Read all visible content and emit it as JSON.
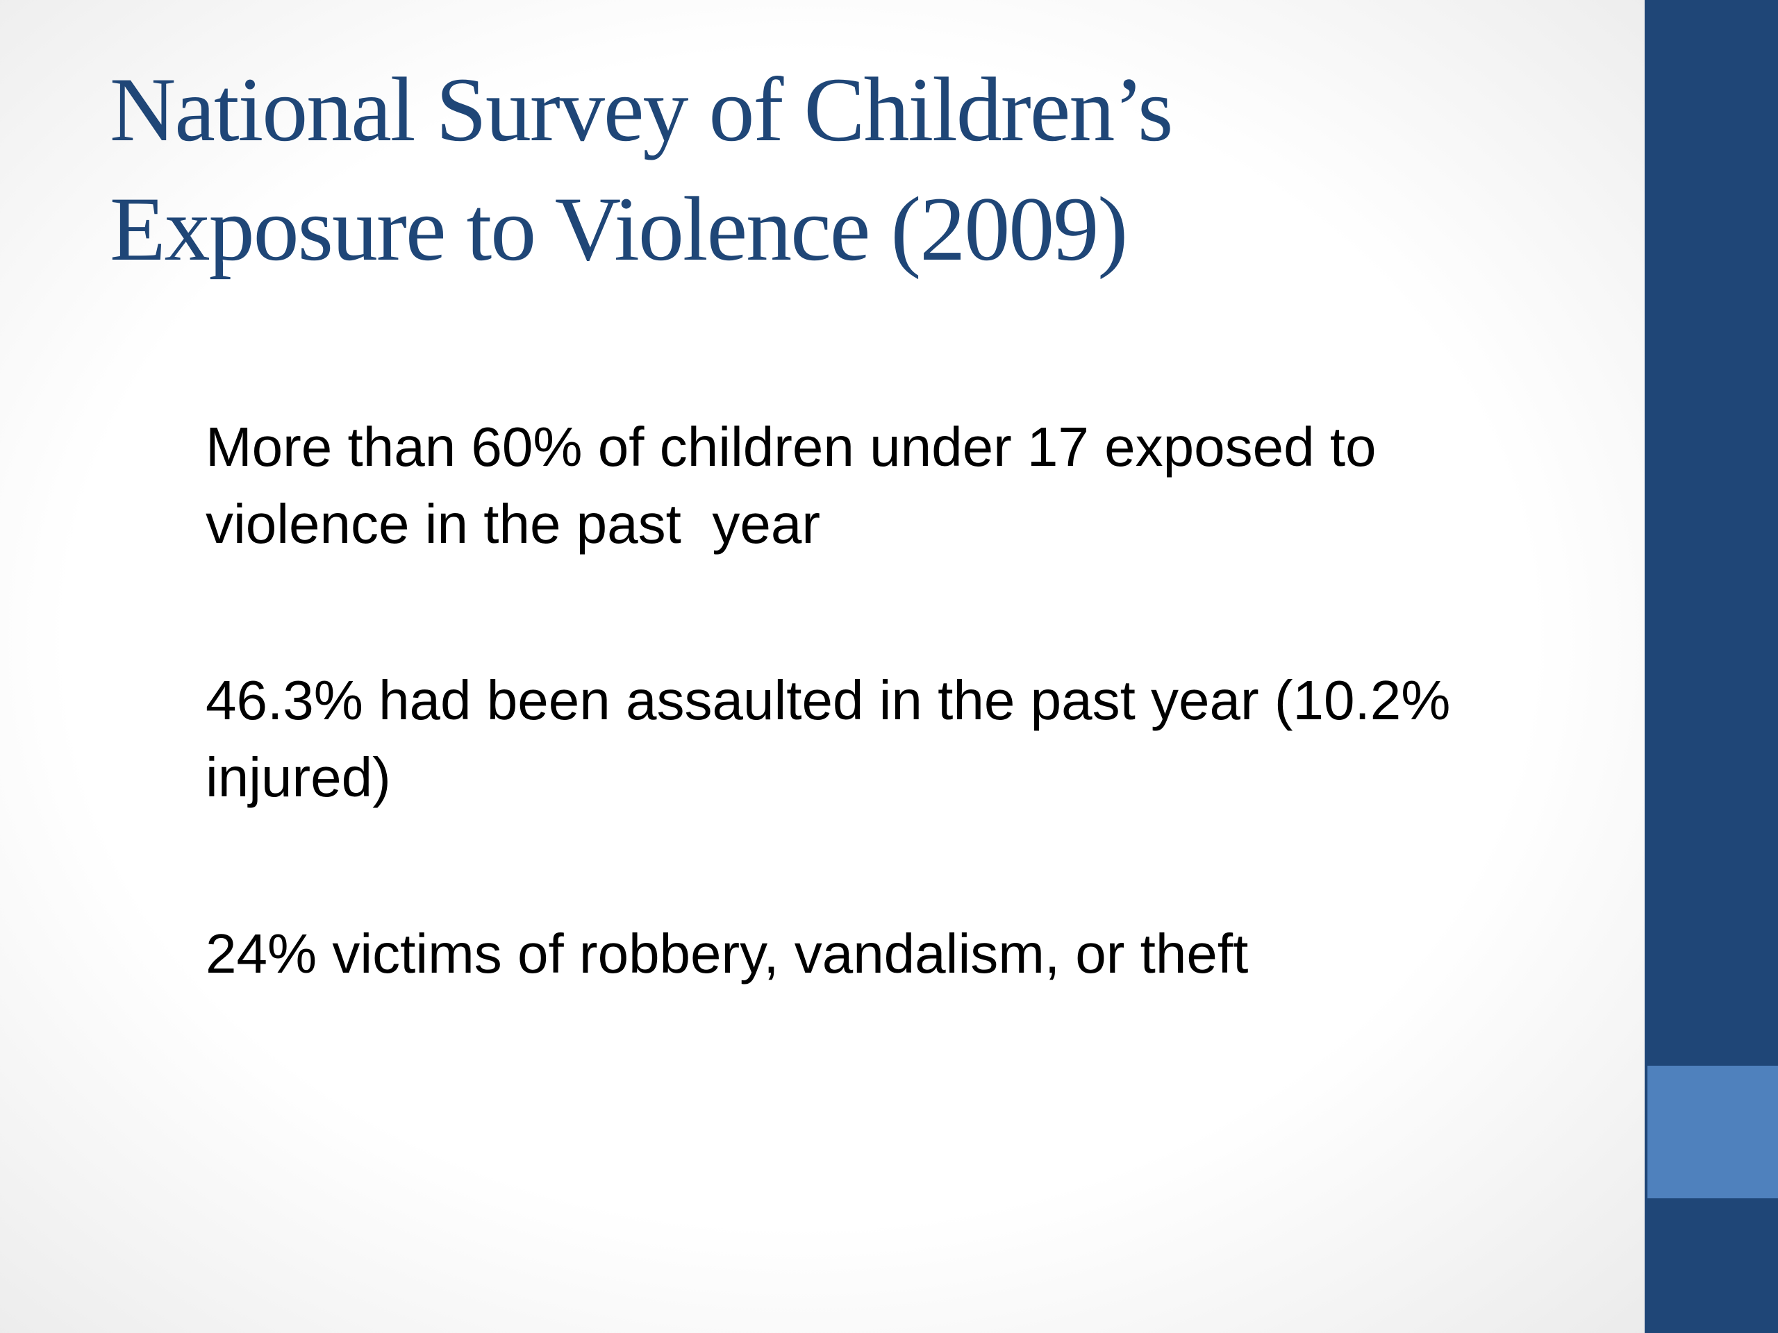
{
  "title": {
    "lines": [
      "National Survey of Children’s",
      "Exposure to Violence (2009)"
    ]
  },
  "bullets": [
    {
      "lines": [
        "More than 60% of children under 17 exposed to",
        "violence in the past  year"
      ]
    },
    {
      "lines": [
        "46.3% had been assaulted in the past year (10.2%",
        "injured)"
      ]
    },
    {
      "lines": [
        "24% victims of robbery, vandalism, or theft"
      ]
    }
  ]
}
